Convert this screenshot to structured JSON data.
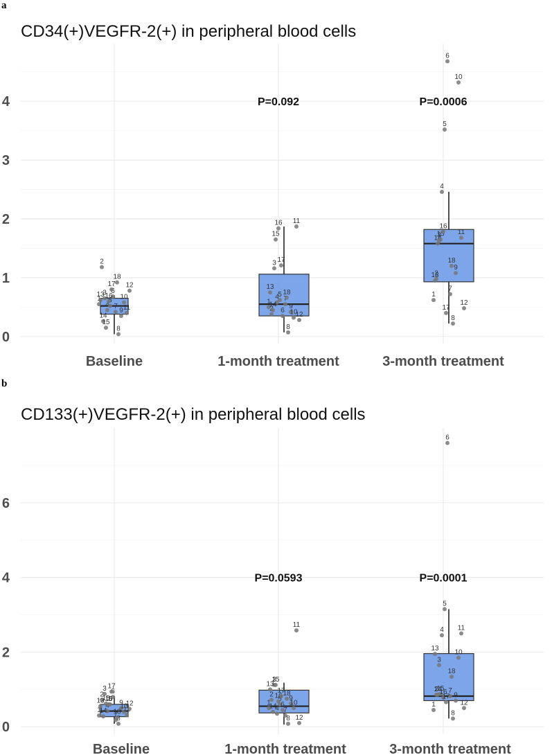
{
  "chart_data": [
    {
      "type": "box",
      "panel_label": "a",
      "title": "CD34(+)VEGFR-2(+) in peripheral blood cells",
      "categories": [
        "Baseline",
        "1-month treatment",
        "3-month treatment"
      ],
      "ylim": [
        -0.12,
        4.98
      ],
      "yticks": [
        "0",
        "1",
        "2",
        "3",
        "4"
      ],
      "p_values": [
        "",
        "P=0.092",
        "P=0.0006"
      ],
      "p_value_y": 4,
      "boxes": [
        {
          "q1": 0.38,
          "median": 0.52,
          "q3": 0.65,
          "low": 0.04,
          "high": 0.7
        },
        {
          "q1": 0.35,
          "median": 0.55,
          "q3": 1.06,
          "low": 0.07,
          "high": 1.87
        },
        {
          "q1": 0.93,
          "median": 1.58,
          "q3": 1.82,
          "low": 0.22,
          "high": 2.46
        }
      ],
      "points": [
        [
          [
            "1",
            0.55
          ],
          [
            "2",
            1.18
          ],
          [
            "3",
            0.65
          ],
          [
            "4",
            0.45
          ],
          [
            "5",
            0.52
          ],
          [
            "6",
            0.68
          ],
          [
            "7",
            0.42
          ],
          [
            "8",
            0.04
          ],
          [
            "9",
            0.35
          ],
          [
            "10",
            0.58
          ],
          [
            "11",
            0.4
          ],
          [
            "12",
            0.78
          ],
          [
            "13",
            0.62
          ],
          [
            "14",
            0.26
          ],
          [
            "15",
            0.15
          ],
          [
            "16",
            0.6
          ],
          [
            "17",
            0.8
          ],
          [
            "18",
            0.92
          ]
        ],
        [
          [
            "1",
            0.5
          ],
          [
            "2",
            0.38
          ],
          [
            "3",
            1.16
          ],
          [
            "4",
            0.58
          ],
          [
            "5",
            0.62
          ],
          [
            "6",
            0.35
          ],
          [
            "7",
            0.55
          ],
          [
            "8",
            0.07
          ],
          [
            "9",
            0.42
          ],
          [
            "10",
            0.32
          ],
          [
            "11",
            1.87
          ],
          [
            "12",
            0.28
          ],
          [
            "13",
            0.75
          ],
          [
            "14",
            0.45
          ],
          [
            "15",
            1.65
          ],
          [
            "16",
            1.84
          ],
          [
            "17",
            1.21
          ],
          [
            "18",
            0.66
          ]
        ],
        [
          [
            "1",
            0.62
          ],
          [
            "2",
            0.98
          ],
          [
            "3",
            1.63
          ],
          [
            "4",
            2.46
          ],
          [
            "5",
            3.52
          ],
          [
            "6",
            4.68
          ],
          [
            "7",
            0.72
          ],
          [
            "8",
            0.22
          ],
          [
            "9",
            1.08
          ],
          [
            "10",
            4.32
          ],
          [
            "11",
            1.68
          ],
          [
            "12",
            0.48
          ],
          [
            "13",
            0.95
          ],
          [
            "14",
            1.58
          ],
          [
            "15",
            1.65
          ],
          [
            "16",
            1.78
          ],
          [
            "17",
            0.4
          ],
          [
            "18",
            1.2
          ]
        ]
      ]
    },
    {
      "type": "box",
      "panel_label": "b",
      "title": "CD133(+)VEGFR-2(+) in peripheral blood cells",
      "categories": [
        "Baseline",
        "1-month treatment",
        "3-month treatment"
      ],
      "ylim": [
        -0.2,
        8.0
      ],
      "yticks": [
        "0",
        "2",
        "4",
        "6"
      ],
      "p_values": [
        "",
        "P=0.0593",
        "P=0.0001"
      ],
      "p_value_y": 4,
      "boxes": [
        {
          "q1": 0.27,
          "median": 0.42,
          "q3": 0.6,
          "low": 0.08,
          "high": 0.82
        },
        {
          "q1": 0.37,
          "median": 0.55,
          "q3": 0.98,
          "low": 0.06,
          "high": 1.18
        },
        {
          "q1": 0.7,
          "median": 0.82,
          "q3": 1.96,
          "low": 0.22,
          "high": 3.15
        }
      ],
      "points": [
        [
          [
            "1",
            0.3
          ],
          [
            "2",
            0.72
          ],
          [
            "3",
            0.88
          ],
          [
            "4",
            0.42
          ],
          [
            "5",
            0.6
          ],
          [
            "6",
            0.8
          ],
          [
            "7",
            0.18
          ],
          [
            "8",
            0.08
          ],
          [
            "9",
            0.5
          ],
          [
            "10",
            0.4
          ],
          [
            "11",
            0.32
          ],
          [
            "12",
            0.48
          ],
          [
            "13",
            0.55
          ],
          [
            "14",
            0.28
          ],
          [
            "15",
            0.62
          ],
          [
            "16",
            0.6
          ],
          [
            "17",
            0.94
          ],
          [
            "18",
            0.25
          ]
        ],
        [
          [
            "1",
            0.5
          ],
          [
            "2",
            0.72
          ],
          [
            "3",
            1.12
          ],
          [
            "4",
            0.35
          ],
          [
            "5",
            0.6
          ],
          [
            "6",
            0.45
          ],
          [
            "7",
            0.3
          ],
          [
            "8",
            0.08
          ],
          [
            "9",
            0.62
          ],
          [
            "10",
            0.5
          ],
          [
            "11",
            2.58
          ],
          [
            "12",
            0.1
          ],
          [
            "13",
            1.0
          ],
          [
            "14",
            0.4
          ],
          [
            "15",
            1.12
          ],
          [
            "16",
            0.68
          ],
          [
            "17",
            0.82
          ],
          [
            "18",
            0.75
          ]
        ],
        [
          [
            "1",
            0.45
          ],
          [
            "2",
            0.86
          ],
          [
            "3",
            1.65
          ],
          [
            "4",
            2.45
          ],
          [
            "5",
            3.15
          ],
          [
            "6",
            7.6
          ],
          [
            "7",
            0.82
          ],
          [
            "8",
            0.22
          ],
          [
            "9",
            0.7
          ],
          [
            "10",
            1.85
          ],
          [
            "11",
            2.5
          ],
          [
            "12",
            0.5
          ],
          [
            "13",
            1.95
          ],
          [
            "14",
            0.86
          ],
          [
            "15",
            0.88
          ],
          [
            "16",
            0.78
          ],
          [
            "17",
            0.66
          ],
          [
            "18",
            1.34
          ]
        ]
      ]
    }
  ]
}
